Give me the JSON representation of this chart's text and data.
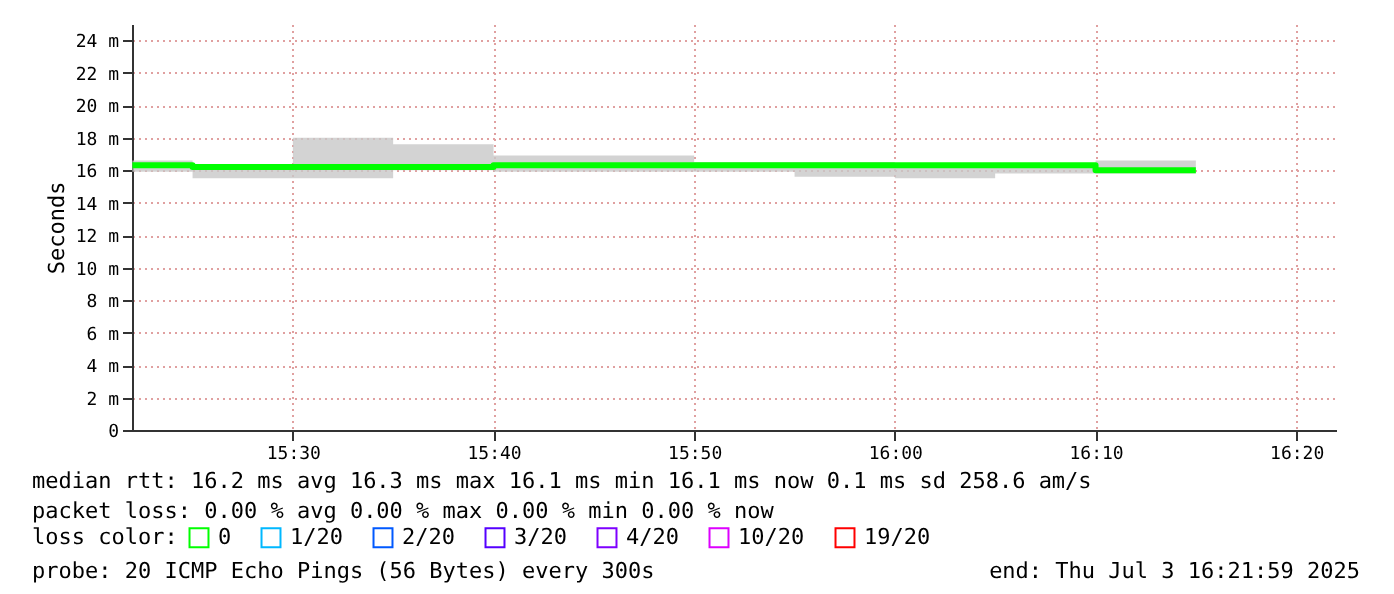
{
  "chart_data": {
    "type": "step",
    "ylabel": "Seconds",
    "legend_title": "loss color:",
    "x": [
      15.3667,
      15.4167,
      15.5,
      15.5833,
      15.6667,
      15.75,
      15.8333,
      15.9167,
      16.0,
      16.0833,
      16.1667,
      16.25
    ],
    "series": [
      {
        "name": "0",
        "color": "#00ff00",
        "values": [
          16.3,
          16.2,
          16.2,
          16.2,
          16.3,
          16.3,
          16.3,
          16.3,
          16.3,
          16.3,
          16.0,
          16.0
        ],
        "lower": [
          15.9,
          15.5,
          15.5,
          16.0,
          15.9,
          15.9,
          15.9,
          15.6,
          15.5,
          15.8,
          15.8,
          15.8
        ],
        "upper": [
          16.6,
          16.3,
          18.0,
          17.6,
          16.9,
          16.9,
          16.5,
          16.5,
          16.4,
          16.4,
          16.6,
          16.6
        ]
      },
      {
        "name": "1/20",
        "color": "#00b8ff",
        "values": [
          null,
          null,
          null,
          null,
          null,
          null,
          null,
          null,
          null,
          null,
          null,
          null
        ]
      },
      {
        "name": "2/20",
        "color": "#0059ff",
        "values": [
          null,
          null,
          null,
          null,
          null,
          null,
          null,
          null,
          null,
          null,
          null,
          null
        ]
      },
      {
        "name": "3/20",
        "color": "#5500ff",
        "values": [
          null,
          null,
          null,
          null,
          null,
          null,
          null,
          null,
          null,
          null,
          null,
          null
        ]
      },
      {
        "name": "4/20",
        "color": "#7e00ff",
        "values": [
          null,
          null,
          null,
          null,
          null,
          null,
          null,
          null,
          null,
          null,
          null,
          null
        ]
      },
      {
        "name": "10/20",
        "color": "#dd00ff",
        "values": [
          null,
          null,
          null,
          null,
          null,
          null,
          null,
          null,
          null,
          null,
          null,
          null
        ]
      },
      {
        "name": "19/20",
        "color": "#ff0000",
        "values": [
          null,
          null,
          null,
          null,
          null,
          null,
          null,
          null,
          null,
          null,
          null,
          null
        ]
      }
    ],
    "xlim": [
      15.3664,
      16.3664
    ],
    "xticks": [
      {
        "value": 15.5,
        "label": "15:30"
      },
      {
        "value": 15.6667,
        "label": "15:40"
      },
      {
        "value": 15.8333,
        "label": "15:50"
      },
      {
        "value": 16.0,
        "label": "16:00"
      },
      {
        "value": 16.1667,
        "label": "16:10"
      },
      {
        "value": 16.3333,
        "label": "16:20"
      }
    ],
    "ylim": [
      0,
      25
    ],
    "yticks": [
      {
        "value": 0,
        "label": "0"
      },
      {
        "value": 2,
        "label": "2 m"
      },
      {
        "value": 4,
        "label": "4 m"
      },
      {
        "value": 6,
        "label": "6 m"
      },
      {
        "value": 8,
        "label": "8 m"
      },
      {
        "value": 10,
        "label": "10 m"
      },
      {
        "value": 12,
        "label": "12 m"
      },
      {
        "value": 14,
        "label": "14 m"
      },
      {
        "value": 16,
        "label": "16 m"
      },
      {
        "value": 18,
        "label": "18 m"
      },
      {
        "value": 20,
        "label": "20 m"
      },
      {
        "value": 22,
        "label": "22 m"
      },
      {
        "value": 24,
        "label": "24 m"
      }
    ],
    "grid": true,
    "legend": "bottom",
    "line_style": "solid",
    "marker": "none",
    "annotations": [
      "median rtt:  16.2 ms avg  16.3 ms max  16.1 ms min  16.1 ms now  0.1 ms sd  258.6   am/s",
      "packet loss: 0.00 % avg  0.00 % max  0.00 % min  0.00 % now",
      "probe:       20 ICMP Echo Pings (56 Bytes) every 300s",
      "end: Thu Jul  3 16:21:59 2025"
    ]
  }
}
